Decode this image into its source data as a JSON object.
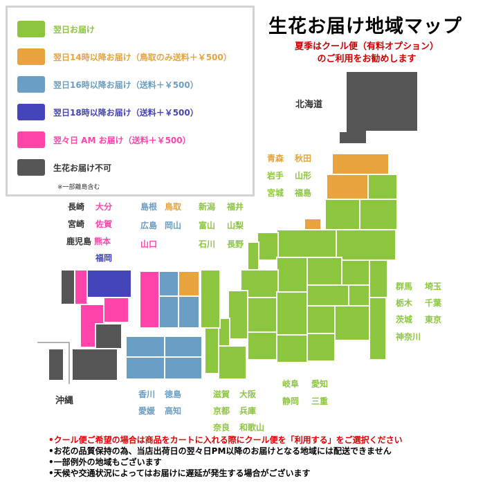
{
  "title": "生花お届け地域マップ",
  "subtitle": [
    "夏季はクール便（有料オプション）",
    "のご利用をお勧めします"
  ],
  "colors": {
    "next_day": "#8cc63f",
    "next_day_14": "#e8a33d",
    "next_day_16": "#6a9ec4",
    "next_day_18": "#4444bb",
    "day_after_am": "#ff44aa",
    "not_available": "#555555"
  },
  "legend": [
    {
      "label": "翌日お届け",
      "color": "#8cc63f"
    },
    {
      "label": "翌日14時以降お届け（鳥取のみ送料＋￥500）",
      "color": "#e8a33d"
    },
    {
      "label": "翌日16時以降お届け（送料＋￥500）",
      "color": "#6a9ec4"
    },
    {
      "label": "翌日18時以降お届け（送料＋￥500）",
      "color": "#4444bb"
    },
    {
      "label": "翌々日 AM お届け（送料＋￥500）",
      "color": "#ff44aa"
    },
    {
      "label": "生花お届け不可",
      "color": "#555555"
    }
  ],
  "legend_note": "※一部離島含む",
  "regions": {
    "hokkaido": "北海道",
    "okinawa": "沖縄"
  },
  "prefecture_groups": {
    "tohoku": [
      {
        "name": "青森",
        "color": "#e8a33d"
      },
      {
        "name": "秋田",
        "color": "#e8a33d"
      },
      {
        "name": "岩手",
        "color": "#8cc63f"
      },
      {
        "name": "山形",
        "color": "#8cc63f"
      },
      {
        "name": "宮城",
        "color": "#8cc63f"
      },
      {
        "name": "福島",
        "color": "#8cc63f"
      }
    ],
    "kyushu": [
      {
        "name": "長崎",
        "color": "#333333"
      },
      {
        "name": "大分",
        "color": "#ff44aa"
      },
      {
        "name": "宮崎",
        "color": "#333333"
      },
      {
        "name": "佐賀",
        "color": "#ff44aa"
      },
      {
        "name": "鹿児島",
        "color": "#333333"
      },
      {
        "name": "熊本",
        "color": "#ff44aa"
      },
      {
        "name": "福岡",
        "color": "#4444bb"
      }
    ],
    "chugoku": [
      {
        "name": "島根",
        "color": "#6a9ec4"
      },
      {
        "name": "鳥取",
        "color": "#e8a33d"
      },
      {
        "name": "広島",
        "color": "#6a9ec4"
      },
      {
        "name": "岡山",
        "color": "#6a9ec4"
      },
      {
        "name": "山口",
        "color": "#ff44aa"
      }
    ],
    "hokuriku": [
      {
        "name": "新潟",
        "color": "#8cc63f"
      },
      {
        "name": "福井",
        "color": "#8cc63f"
      },
      {
        "name": "富山",
        "color": "#8cc63f"
      },
      {
        "name": "山梨",
        "color": "#8cc63f"
      },
      {
        "name": "石川",
        "color": "#8cc63f"
      },
      {
        "name": "長野",
        "color": "#8cc63f"
      }
    ],
    "kanto": [
      {
        "name": "群馬",
        "color": "#8cc63f"
      },
      {
        "name": "埼玉",
        "color": "#8cc63f"
      },
      {
        "name": "栃木",
        "color": "#8cc63f"
      },
      {
        "name": "千葉",
        "color": "#8cc63f"
      },
      {
        "name": "茨城",
        "color": "#8cc63f"
      },
      {
        "name": "東京",
        "color": "#8cc63f"
      },
      {
        "name": "神奈川",
        "color": "#8cc63f"
      }
    ],
    "shikoku": [
      {
        "name": "香川",
        "color": "#6a9ec4"
      },
      {
        "name": "徳島",
        "color": "#6a9ec4"
      },
      {
        "name": "愛媛",
        "color": "#6a9ec4"
      },
      {
        "name": "高知",
        "color": "#6a9ec4"
      }
    ],
    "kinki": [
      {
        "name": "滋賀",
        "color": "#8cc63f"
      },
      {
        "name": "大阪",
        "color": "#8cc63f"
      },
      {
        "name": "京都",
        "color": "#8cc63f"
      },
      {
        "name": "兵庫",
        "color": "#8cc63f"
      },
      {
        "name": "奈良",
        "color": "#8cc63f"
      },
      {
        "name": "和歌山",
        "color": "#8cc63f"
      }
    ],
    "tokai": [
      {
        "name": "岐阜",
        "color": "#8cc63f"
      },
      {
        "name": "愛知",
        "color": "#8cc63f"
      },
      {
        "name": "静岡",
        "color": "#8cc63f"
      },
      {
        "name": "三重",
        "color": "#8cc63f"
      }
    ]
  },
  "notes": [
    {
      "text": "•クール便ご希望の場合は商品をカートに入れる際にクール便を「利用する」をご選択ください",
      "red": true
    },
    {
      "text": "•お花の品質保持の為、当店出荷日の翌々日PM以降のお届けとなる地域には配送できません",
      "red": false
    },
    {
      "text": "•一部例外の地域もございます",
      "red": false
    },
    {
      "text": "•天候や交通状況によってはお届けに遅延が発生する場合がございます",
      "red": false
    }
  ]
}
